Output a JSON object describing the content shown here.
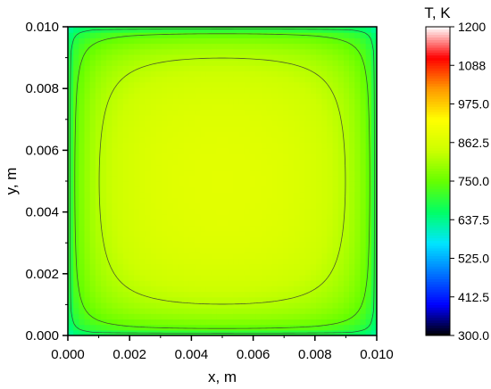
{
  "chart_data": {
    "type": "heatmap",
    "title": "",
    "xlabel": "x, m",
    "ylabel": "y, m",
    "xlim": [
      0.0,
      0.01
    ],
    "ylim": [
      0.0,
      0.01
    ],
    "x_ticks": [
      "0.000",
      "0.002",
      "0.004",
      "0.006",
      "0.008",
      "0.010"
    ],
    "y_ticks": [
      "0.000",
      "0.002",
      "0.004",
      "0.006",
      "0.008",
      "0.010"
    ],
    "x_tick_values": [
      0.0,
      0.002,
      0.004,
      0.006,
      0.008,
      0.01
    ],
    "y_tick_values": [
      0.0,
      0.002,
      0.004,
      0.006,
      0.008,
      0.01
    ],
    "colorbar": {
      "title": "T, K",
      "min": 300.0,
      "max": 1200.0,
      "ticks": [
        "1200",
        "1088",
        "975.0",
        "862.5",
        "750.0",
        "637.5",
        "525.0",
        "412.5",
        "300.0"
      ],
      "tick_values": [
        1200,
        1087.5,
        975,
        862.5,
        750,
        637.5,
        525,
        412.5,
        300
      ],
      "colors": [
        "#000000",
        "#0000ff",
        "#0073ff",
        "#00e6ff",
        "#00ff66",
        "#66ff00",
        "#ccff00",
        "#ffff00",
        "#ff9900",
        "#ff0000",
        "#ffffff"
      ]
    },
    "field": {
      "description": "temperature field, coolest in the corners, warmest at the centre",
      "corner_temperature": 600,
      "center_temperature": 880,
      "contour_levels": [
        680,
        740,
        820
      ]
    },
    "grid": false
  }
}
